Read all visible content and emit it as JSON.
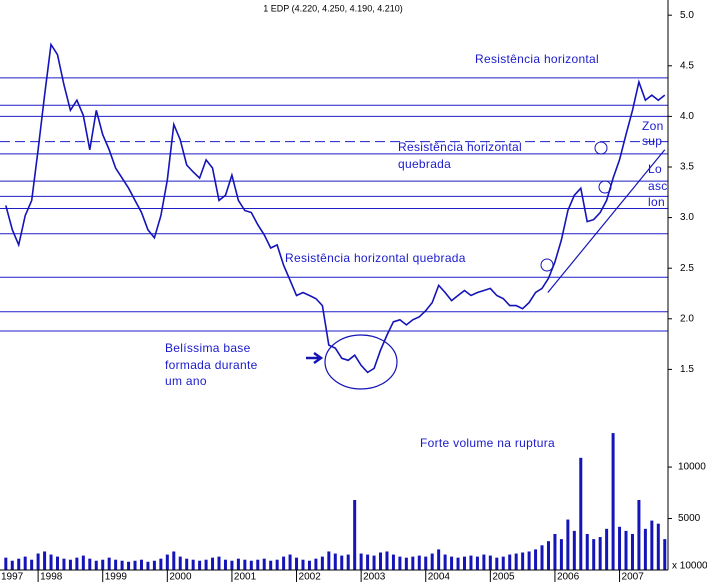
{
  "chart_data": [
    {
      "type": "line",
      "title": "1 EDP (4.220, 4.250, 4.190, 4.210)",
      "color": "#1414b8",
      "xlim": [
        1997.41,
        2007.75
      ],
      "xticks": [
        1997,
        1998,
        1999,
        2000,
        2001,
        2002,
        2003,
        2004,
        2005,
        2006,
        2007
      ],
      "ylim": [
        1.0,
        5.15
      ],
      "yticks": [
        1.5,
        {
          "value": 2,
          "label": "2.0"
        },
        2.5,
        {
          "value": 3,
          "label": "3.0"
        },
        3.5,
        {
          "value": 4,
          "label": "4.0"
        },
        4.5,
        {
          "value": 5,
          "label": "5.0"
        }
      ],
      "x": [
        1997.5,
        1997.6,
        1997.7,
        1997.8,
        1997.9,
        1998.0,
        1998.1,
        1998.2,
        1998.3,
        1998.4,
        1998.5,
        1998.6,
        1998.7,
        1998.8,
        1998.9,
        1999.0,
        1999.1,
        1999.2,
        1999.3,
        1999.4,
        1999.5,
        1999.6,
        1999.7,
        1999.8,
        1999.9,
        2000.0,
        2000.1,
        2000.2,
        2000.3,
        2000.4,
        2000.5,
        2000.6,
        2000.7,
        2000.8,
        2000.9,
        2001.0,
        2001.1,
        2001.2,
        2001.3,
        2001.4,
        2001.5,
        2001.6,
        2001.7,
        2001.8,
        2001.9,
        2002.0,
        2002.1,
        2002.2,
        2002.3,
        2002.4,
        2002.5,
        2002.6,
        2002.7,
        2002.8,
        2002.9,
        2003.0,
        2003.1,
        2003.2,
        2003.3,
        2003.4,
        2003.5,
        2003.6,
        2003.7,
        2003.8,
        2003.9,
        2004.0,
        2004.1,
        2004.2,
        2004.3,
        2004.4,
        2004.5,
        2004.6,
        2004.7,
        2004.8,
        2004.9,
        2005.0,
        2005.1,
        2005.2,
        2005.3,
        2005.4,
        2005.5,
        2005.6,
        2005.7,
        2005.8,
        2005.9,
        2006.0,
        2006.1,
        2006.2,
        2006.3,
        2006.4,
        2006.5,
        2006.6,
        2006.7,
        2006.8,
        2006.9,
        2007.0,
        2007.1,
        2007.2,
        2007.3,
        2007.4,
        2007.5,
        2007.6,
        2007.7
      ],
      "values": [
        3.12,
        2.88,
        2.73,
        3.02,
        3.17,
        3.67,
        4.21,
        4.71,
        4.61,
        4.31,
        4.06,
        4.16,
        4.01,
        3.67,
        4.06,
        3.82,
        3.67,
        3.49,
        3.39,
        3.29,
        3.17,
        3.05,
        2.88,
        2.8,
        3.02,
        3.37,
        3.92,
        3.77,
        3.52,
        3.45,
        3.39,
        3.57,
        3.49,
        3.17,
        3.22,
        3.42,
        3.17,
        3.07,
        3.05,
        2.93,
        2.83,
        2.7,
        2.73,
        2.53,
        2.38,
        2.23,
        2.26,
        2.23,
        2.2,
        2.13,
        1.74,
        1.71,
        1.61,
        1.59,
        1.64,
        1.54,
        1.47,
        1.51,
        1.69,
        1.84,
        1.97,
        1.99,
        1.94,
        1.99,
        2.02,
        2.08,
        2.16,
        2.33,
        2.26,
        2.18,
        2.23,
        2.28,
        2.23,
        2.26,
        2.28,
        2.3,
        2.23,
        2.2,
        2.13,
        2.13,
        2.1,
        2.16,
        2.26,
        2.3,
        2.4,
        2.56,
        2.78,
        3.07,
        3.22,
        3.29,
        2.96,
        2.98,
        3.05,
        3.17,
        3.39,
        3.57,
        3.82,
        4.06,
        4.34,
        4.16,
        4.21,
        4.16,
        4.21
      ],
      "levels": [
        4.38,
        4.11,
        4.0,
        3.63,
        3.36,
        3.21,
        3.09,
        2.84,
        2.41,
        2.07,
        1.88
      ],
      "dashed_levels": [
        3.75
      ],
      "trendline": {
        "x": [
          2005.89,
          2007.7
        ],
        "y": [
          2.26,
          3.67
        ]
      },
      "annotations": [
        [
          "Resistência horizontal"
        ],
        [
          "Resistência horizontal",
          "quebrada"
        ],
        [
          "Resistência horizontal quebrada"
        ],
        [
          "Belíssima base",
          "formada durante",
          "um ano"
        ],
        [
          "Zon",
          "sup"
        ],
        [
          "Lo",
          "asc",
          "lon"
        ]
      ]
    },
    {
      "type": "bar",
      "color": "#1414b8",
      "ylim": [
        0,
        13600
      ],
      "yticks": [
        5000,
        10000
      ],
      "unit_label": "x 10000",
      "annotation": "Forte volume na ruptura",
      "values": [
        1200,
        900,
        1100,
        1300,
        1000,
        1600,
        1800,
        1500,
        1300,
        1100,
        1000,
        1200,
        1400,
        1100,
        900,
        1000,
        1200,
        1000,
        900,
        800,
        900,
        1000,
        800,
        900,
        1100,
        1500,
        1800,
        1300,
        1100,
        1000,
        900,
        1000,
        1200,
        1300,
        1000,
        900,
        1100,
        1000,
        900,
        1000,
        1100,
        900,
        1000,
        1300,
        1500,
        1200,
        1000,
        900,
        1100,
        1300,
        1800,
        1600,
        1400,
        1500,
        6800,
        1600,
        1500,
        1400,
        1700,
        1800,
        1500,
        1300,
        1200,
        1300,
        1400,
        1300,
        1600,
        2000,
        1500,
        1300,
        1200,
        1300,
        1400,
        1300,
        1500,
        1400,
        1200,
        1300,
        1500,
        1600,
        1700,
        1800,
        2000,
        2400,
        2800,
        3500,
        3000,
        4900,
        3800,
        10900,
        3500,
        3000,
        3200,
        4000,
        13300,
        4200,
        3800,
        3500,
        6800,
        4000,
        4800,
        4500,
        3000
      ]
    }
  ]
}
